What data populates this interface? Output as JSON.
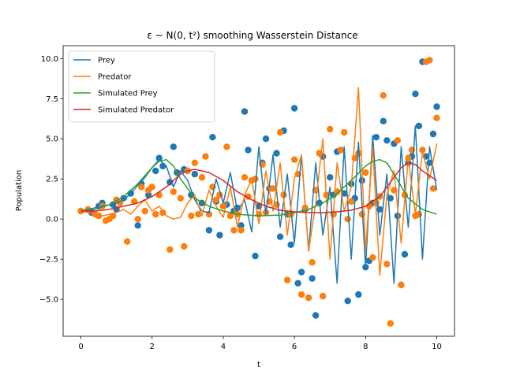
{
  "chart_data": {
    "type": "line",
    "title": "ε ∼ N(0, t²) smoothing Wasserstein Distance",
    "xlabel": "t",
    "ylabel": "Population",
    "xlim": [
      -0.5,
      10.5
    ],
    "ylim": [
      -7.3,
      10.8
    ],
    "xticks": [
      0,
      2,
      4,
      6,
      8,
      10
    ],
    "yticks": [
      -5.0,
      -2.5,
      0.0,
      2.5,
      5.0,
      7.5,
      10.0
    ],
    "ytick_labels": [
      "−5.0",
      "−2.5",
      "0.0",
      "2.5",
      "5.0",
      "7.5",
      "10.0"
    ],
    "grid": false,
    "legend_position": "top-left",
    "series": [
      {
        "name": "Prey",
        "color": "#1f77b4",
        "kind": "line",
        "x": [
          0.0,
          0.2,
          0.4,
          0.6,
          0.8,
          1.0,
          1.2,
          1.4,
          1.6,
          1.8,
          2.0,
          2.2,
          2.4,
          2.6,
          2.8,
          3.0,
          3.2,
          3.4,
          3.6,
          3.8,
          4.0,
          4.2,
          4.4,
          4.6,
          4.8,
          5.0,
          5.2,
          5.4,
          5.6,
          5.8,
          6.0,
          6.2,
          6.4,
          6.6,
          6.8,
          7.0,
          7.2,
          7.4,
          7.6,
          7.8,
          8.0,
          8.2,
          8.4,
          8.6,
          8.8,
          9.0,
          9.2,
          9.4,
          9.6,
          9.8,
          10.0
        ],
        "y": [
          0.5,
          0.6,
          0.7,
          0.8,
          0.9,
          1.0,
          1.2,
          1.6,
          2.1,
          2.6,
          3.2,
          3.7,
          3.3,
          2.0,
          3.0,
          2.4,
          1.2,
          0.5,
          0.4,
          2.5,
          1.0,
          2.9,
          0.5,
          1.2,
          -0.8,
          4.5,
          0.3,
          4.0,
          -0.5,
          2.8,
          -1.5,
          4.0,
          -2.0,
          3.5,
          -1.0,
          2.0,
          -4.0,
          4.5,
          -2.5,
          4.8,
          -3.0,
          5.2,
          -1.0,
          2.8,
          -4.0,
          4.5,
          -0.5,
          5.8,
          -2.5,
          4.5,
          1.8
        ]
      },
      {
        "name": "Predator",
        "color": "#ff7f0e",
        "kind": "line",
        "x": [
          0.0,
          0.2,
          0.4,
          0.6,
          0.8,
          1.0,
          1.2,
          1.4,
          1.6,
          1.8,
          2.0,
          2.2,
          2.4,
          2.6,
          2.8,
          3.0,
          3.2,
          3.4,
          3.6,
          3.8,
          4.0,
          4.2,
          4.4,
          4.6,
          4.8,
          5.0,
          5.2,
          5.4,
          5.6,
          5.8,
          6.0,
          6.2,
          6.4,
          6.6,
          6.8,
          7.0,
          7.2,
          7.4,
          7.6,
          7.8,
          8.0,
          8.2,
          8.4,
          8.6,
          8.8,
          9.0,
          9.2,
          9.4,
          9.6,
          9.8,
          10.0
        ],
        "y": [
          0.5,
          0.4,
          0.3,
          0.2,
          0.3,
          0.4,
          0.6,
          0.3,
          0.8,
          1.2,
          0.5,
          0.8,
          0.2,
          0.0,
          0.1,
          1.0,
          1.5,
          0.2,
          1.8,
          0.8,
          0.1,
          2.0,
          -0.5,
          1.5,
          2.5,
          -0.3,
          3.0,
          0.5,
          3.5,
          -1.0,
          2.5,
          4.0,
          -2.0,
          1.0,
          5.0,
          -2.5,
          3.5,
          0.5,
          2.0,
          8.2,
          -2.0,
          4.5,
          -3.5,
          1.5,
          3.0,
          -1.5,
          3.8,
          0.3,
          4.2,
          2.5,
          4.7
        ]
      },
      {
        "name": "Simulated Prey",
        "color": "#2ca02c",
        "kind": "line",
        "x": [
          0.0,
          0.4,
          0.8,
          1.2,
          1.6,
          2.0,
          2.2,
          2.4,
          2.6,
          2.8,
          3.2,
          3.6,
          4.0,
          4.4,
          5.0,
          5.6,
          6.0,
          6.4,
          6.8,
          7.2,
          7.6,
          8.0,
          8.2,
          8.4,
          8.6,
          8.8,
          9.2,
          9.6,
          10.0
        ],
        "y": [
          0.5,
          0.6,
          0.9,
          1.4,
          2.2,
          3.2,
          3.6,
          3.7,
          3.3,
          2.5,
          1.3,
          0.8,
          0.5,
          0.3,
          0.2,
          0.25,
          0.4,
          0.6,
          1.0,
          1.6,
          2.4,
          3.3,
          3.6,
          3.7,
          3.5,
          2.8,
          1.3,
          0.6,
          0.3
        ]
      },
      {
        "name": "Simulated Predator",
        "color": "#d62728",
        "kind": "line",
        "x": [
          0.0,
          0.4,
          0.8,
          1.2,
          1.6,
          2.0,
          2.4,
          2.8,
          3.0,
          3.2,
          3.6,
          4.0,
          4.4,
          4.8,
          5.2,
          5.6,
          6.0,
          6.4,
          6.8,
          7.2,
          7.6,
          8.0,
          8.4,
          8.8,
          9.0,
          9.2,
          9.4,
          9.6,
          9.8,
          10.0
        ],
        "y": [
          0.5,
          0.5,
          0.6,
          0.8,
          1.0,
          1.4,
          2.0,
          2.8,
          3.0,
          3.1,
          2.9,
          2.4,
          1.7,
          1.2,
          0.8,
          0.55,
          0.45,
          0.4,
          0.4,
          0.45,
          0.55,
          0.8,
          1.4,
          2.6,
          3.2,
          3.5,
          3.4,
          3.0,
          2.7,
          2.4
        ]
      },
      {
        "name": "",
        "color": "#1f77b4",
        "kind": "scatter",
        "x": [
          0.0,
          0.3,
          0.5,
          0.6,
          0.9,
          1.0,
          1.2,
          1.4,
          1.6,
          1.7,
          1.9,
          2.1,
          2.2,
          2.3,
          2.5,
          2.6,
          2.7,
          2.9,
          3.1,
          3.2,
          3.4,
          3.6,
          3.7,
          3.8,
          3.9,
          4.1,
          4.3,
          4.4,
          4.5,
          4.6,
          4.7,
          4.9,
          5.0,
          5.1,
          5.2,
          5.3,
          5.5,
          5.6,
          5.7,
          5.8,
          5.9,
          6.0,
          6.1,
          6.2,
          6.3,
          6.5,
          6.6,
          6.7,
          6.8,
          7.0,
          7.1,
          7.2,
          7.3,
          7.4,
          7.5,
          7.6,
          7.7,
          7.8,
          7.9,
          8.0,
          8.1,
          8.2,
          8.3,
          8.4,
          8.5,
          8.6,
          8.7,
          8.8,
          8.9,
          9.0,
          9.1,
          9.2,
          9.3,
          9.4,
          9.5,
          9.6,
          9.7,
          9.8,
          9.9,
          10.0
        ],
        "y": [
          0.5,
          0.4,
          0.8,
          1.0,
          0.9,
          0.6,
          1.3,
          1.6,
          -0.4,
          2.2,
          1.5,
          3.0,
          3.8,
          3.3,
          2.3,
          4.5,
          2.9,
          3.1,
          1.5,
          2.8,
          1.0,
          -0.7,
          5.1,
          1.1,
          -1.0,
          0.9,
          0.5,
          0.7,
          -0.4,
          6.7,
          4.3,
          -2.3,
          0.8,
          3.5,
          5.0,
          1.9,
          4.1,
          -1.1,
          5.5,
          0.3,
          -1.6,
          6.9,
          -4.0,
          -3.3,
          0.6,
          -3.7,
          -6.0,
          1.0,
          3.9,
          2.6,
          1.5,
          4.2,
          4.3,
          1.6,
          -5.1,
          2.2,
          1.3,
          -4.7,
          2.4,
          -3.0,
          -2.6,
          1.0,
          5.1,
          0.6,
          6.1,
          4.9,
          1.3,
          4.7,
          0.2,
          -4.1,
          -2.2,
          3.5,
          3.9,
          7.8,
          5.8,
          9.8,
          3.9,
          3.5,
          5.3,
          7.0
        ]
      },
      {
        "name": "",
        "color": "#ff7f0e",
        "kind": "scatter",
        "x": [
          0.0,
          0.2,
          0.4,
          0.5,
          0.6,
          0.7,
          0.8,
          0.9,
          1.0,
          1.1,
          1.3,
          1.5,
          1.6,
          1.7,
          1.8,
          1.9,
          2.0,
          2.1,
          2.2,
          2.3,
          2.5,
          2.6,
          2.8,
          2.9,
          3.0,
          3.1,
          3.2,
          3.3,
          3.4,
          3.5,
          3.6,
          3.7,
          3.8,
          3.9,
          4.0,
          4.1,
          4.2,
          4.3,
          4.4,
          4.5,
          4.6,
          4.7,
          4.8,
          4.9,
          5.0,
          5.1,
          5.2,
          5.3,
          5.4,
          5.5,
          5.6,
          5.7,
          5.8,
          5.9,
          6.0,
          6.1,
          6.2,
          6.3,
          6.4,
          6.5,
          6.6,
          6.7,
          6.8,
          6.9,
          7.0,
          7.1,
          7.2,
          7.3,
          7.4,
          7.5,
          7.6,
          7.7,
          7.8,
          7.9,
          8.0,
          8.1,
          8.2,
          8.3,
          8.4,
          8.5,
          8.6,
          8.7,
          8.8,
          8.9,
          9.0,
          9.1,
          9.2,
          9.3,
          9.4,
          9.5,
          9.6,
          9.7,
          9.8,
          9.9,
          10.0
        ],
        "y": [
          0.5,
          0.6,
          0.3,
          0.2,
          0.8,
          -0.1,
          0.0,
          0.2,
          1.2,
          1.0,
          -1.4,
          1.1,
          0.0,
          2.0,
          0.5,
          1.8,
          2.0,
          0.3,
          1.5,
          0.4,
          -1.9,
          1.7,
          1.3,
          -1.7,
          3.0,
          0.2,
          3.5,
          0.3,
          2.6,
          3.9,
          0.3,
          2.0,
          1.2,
          1.5,
          0.8,
          4.5,
          0.2,
          -0.7,
          0.3,
          -0.7,
          2.6,
          1.4,
          2.4,
          2.5,
          0.3,
          3.4,
          0.4,
          1.1,
          1.9,
          0.9,
          5.4,
          1.5,
          -3.8,
          0.3,
          3.7,
          2.8,
          -4.7,
          0.7,
          -4.9,
          -2.7,
          1.8,
          4.1,
          -4.8,
          1.5,
          5.6,
          0.3,
          1.7,
          4.3,
          5.4,
          0.0,
          1.1,
          3.8,
          4.1,
          0.3,
          2.9,
          0.8,
          -2.4,
          1.0,
          1.4,
          7.7,
          -2.8,
          -6.5,
          1.8,
          4.9,
          -4.1,
          1.5,
          3.8,
          4.3,
          0.2,
          0.3,
          4.3,
          9.8,
          9.9,
          1.9,
          6.3
        ]
      }
    ]
  }
}
